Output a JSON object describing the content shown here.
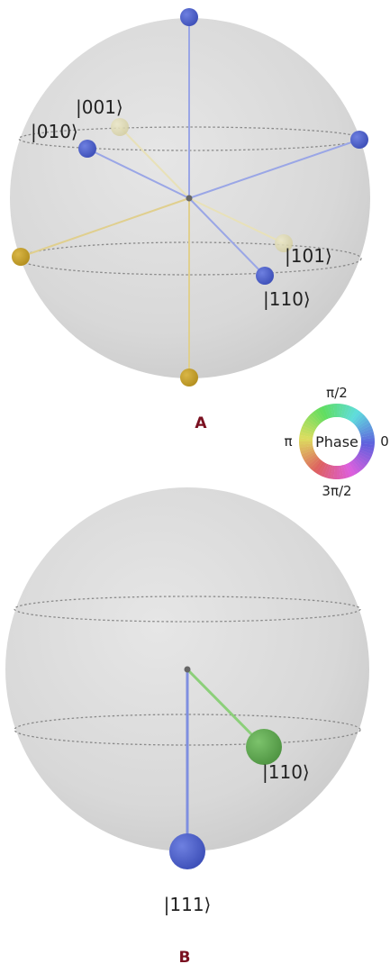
{
  "figure": {
    "panel_a": {
      "label": "A",
      "state_labels": [
        "|001⟩",
        "|010⟩",
        "|101⟩",
        "|110⟩"
      ],
      "points": [
        {
          "name": "top-pole",
          "color": "#4a5cc4"
        },
        {
          "name": "ket-001",
          "color": "#ddd7a8"
        },
        {
          "name": "ket-010",
          "color": "#4a5cc4"
        },
        {
          "name": "right-equator",
          "color": "#4a5cc4"
        },
        {
          "name": "left-equator",
          "color": "#c9a227"
        },
        {
          "name": "ket-101",
          "color": "#d9d2a6"
        },
        {
          "name": "ket-110",
          "color": "#4a5cc4"
        },
        {
          "name": "bottom-pole",
          "color": "#c9a227"
        }
      ]
    },
    "phase_wheel": {
      "center_label": "Phase",
      "top_label": "π/2",
      "left_label": "π",
      "right_label": "0",
      "bottom_label": "3π/2"
    },
    "panel_b": {
      "label": "B",
      "state_labels": [
        "|110⟩",
        "|111⟩"
      ],
      "points": [
        {
          "name": "ket-110",
          "color": "#5ea84f"
        },
        {
          "name": "ket-111",
          "color": "#4257c9"
        }
      ]
    }
  },
  "colors": {
    "panel_label": "#7a1020",
    "sphere": "#d9d9d9",
    "equator_dash": "#8a8a8a"
  }
}
